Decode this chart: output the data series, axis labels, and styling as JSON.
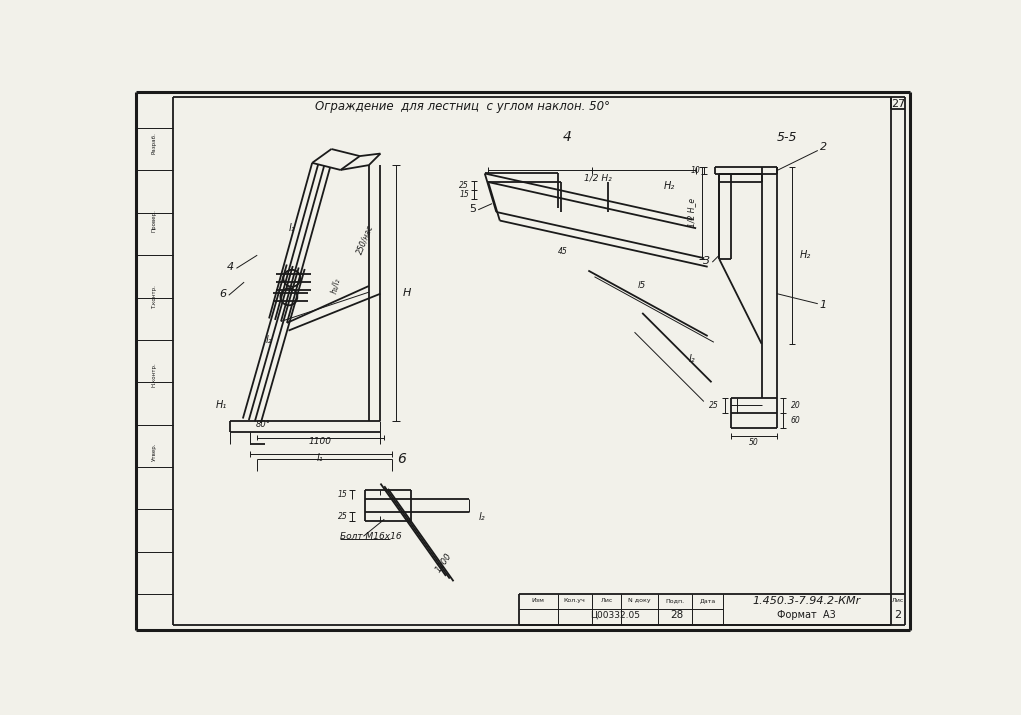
{
  "bg_color": "#f2f1ea",
  "line_color": "#1a1a1a",
  "title": "Ограждение  для лестниц  с углом наклон. 50°",
  "page_num": "27",
  "doc_num": "1.450.3-7.94.2-КМr",
  "stamp_num": "Ц00332.05",
  "sheet_num": "28",
  "format_text": "Формат  А3"
}
